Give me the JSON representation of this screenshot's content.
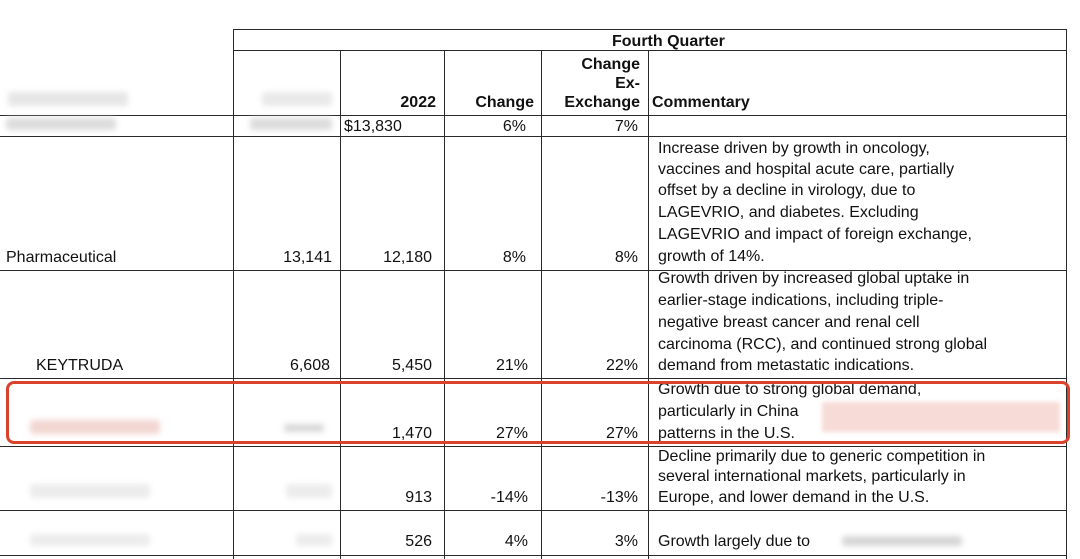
{
  "header": {
    "group": "Fourth Quarter",
    "col_2022": "2022",
    "col_change": "Change",
    "col_change_ex": [
      "Change",
      "Ex-",
      "Exchange"
    ],
    "col_commentary": "Commentary"
  },
  "rows": [
    {
      "label": "",
      "q4_2023": "",
      "q4_2022": "$13,830",
      "change": "6%",
      "change_ex": "7%",
      "commentary": []
    },
    {
      "label": "Pharmaceutical",
      "q4_2023": "13,141",
      "q4_2022": "12,180",
      "change": "8%",
      "change_ex": "8%",
      "commentary": [
        "Increase driven by growth in oncology,",
        "vaccines and hospital acute care, partially",
        "offset by a decline in virology, due to",
        "LAGEVRIO, and diabetes. Excluding",
        "LAGEVRIO and impact of foreign exchange,",
        "growth of 14%."
      ]
    },
    {
      "label": "KEYTRUDA",
      "q4_2023": "6,608",
      "q4_2022": "5,450",
      "change": "21%",
      "change_ex": "22%",
      "commentary": [
        "Growth driven by increased global uptake in",
        "earlier-stage indications, including triple-",
        "negative breast cancer and renal cell",
        "carcinoma (RCC), and continued strong global",
        "demand from metastatic indications."
      ]
    },
    {
      "label": "",
      "q4_2023": "",
      "q4_2022": "1,470",
      "change": "27%",
      "change_ex": "27%",
      "commentary": [
        "Growth due to strong global demand,",
        "particularly in China",
        "patterns in the U.S."
      ]
    },
    {
      "label": "",
      "q4_2023": "",
      "q4_2022": "913",
      "change": "-14%",
      "change_ex": "-13%",
      "commentary": [
        "Decline primarily due to generic competition in",
        "several international markets, particularly in",
        "Europe, and lower demand in the U.S."
      ]
    },
    {
      "label": "",
      "q4_2023": "",
      "q4_2022": "526",
      "change": "4%",
      "change_ex": "3%",
      "commentary": [
        "Growth largely due to"
      ]
    }
  ],
  "colors": {
    "highlight": "#d9432c",
    "rule": "#2a2a2a"
  }
}
